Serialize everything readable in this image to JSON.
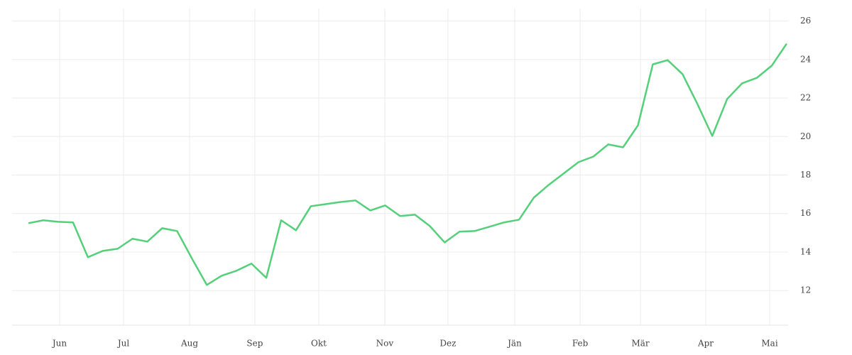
{
  "chart_data": {
    "type": "line",
    "x": [
      0,
      1,
      2,
      3,
      4,
      5,
      6,
      7,
      8,
      9,
      10,
      11,
      12,
      13,
      14,
      15,
      16,
      17,
      18,
      19,
      20,
      21,
      22,
      23,
      24,
      25,
      26,
      27,
      28,
      29,
      30,
      31,
      32,
      33,
      34,
      35,
      36,
      37,
      38,
      39,
      40,
      41,
      42,
      43,
      44,
      45,
      46,
      47,
      48,
      49,
      50,
      51
    ],
    "series": [
      {
        "color": "#55d07a",
        "values": [
          15.5,
          15.65,
          15.57,
          15.54,
          13.73,
          14.06,
          14.17,
          14.69,
          14.54,
          15.24,
          15.09,
          13.66,
          12.29,
          12.77,
          13.03,
          13.4,
          12.66,
          15.65,
          15.13,
          16.38,
          16.49,
          16.6,
          16.68,
          16.16,
          16.42,
          15.87,
          15.94,
          15.35,
          14.5,
          15.06,
          15.09,
          15.31,
          15.54,
          15.68,
          16.83,
          17.49,
          18.08,
          18.67,
          18.96,
          19.59,
          19.44,
          20.58,
          23.75,
          23.97,
          23.24,
          21.69,
          20.03,
          21.95,
          22.76,
          23.05,
          23.68,
          24.82
        ]
      }
    ],
    "xlim": [
      -1.1,
      51.1
    ],
    "xticks": [
      {
        "value": 2.1,
        "label": "Jun"
      },
      {
        "value": 6.4,
        "label": "Jul"
      },
      {
        "value": 10.84,
        "label": "Aug"
      },
      {
        "value": 15.23,
        "label": "Sep"
      },
      {
        "value": 19.53,
        "label": "Okt"
      },
      {
        "value": 23.97,
        "label": "Nov"
      },
      {
        "value": 28.22,
        "label": "Dez"
      },
      {
        "value": 32.71,
        "label": "Jän"
      },
      {
        "value": 37.11,
        "label": "Feb"
      },
      {
        "value": 41.17,
        "label": "Mär"
      },
      {
        "value": 45.56,
        "label": "Apr"
      },
      {
        "value": 49.86,
        "label": "Mai"
      }
    ],
    "ylim": [
      10.2,
      26.65
    ],
    "yticks": [
      12,
      14,
      16,
      18,
      20,
      22,
      24,
      26
    ],
    "grid": true
  }
}
